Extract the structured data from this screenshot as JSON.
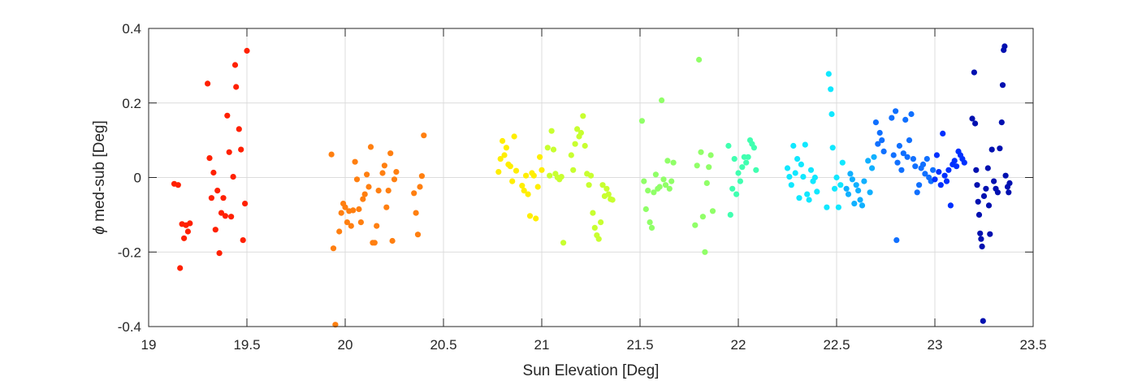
{
  "chart_data": {
    "type": "scatter",
    "title": "",
    "xlabel": "Sun Elevation [Deg]",
    "ylabel_symbol": "ϕ",
    "ylabel": " med-sub [Deg]",
    "xlim": [
      19,
      23.5
    ],
    "ylim": [
      -0.4,
      0.4
    ],
    "xticks": [
      19,
      19.5,
      20,
      20.5,
      21,
      21.5,
      22,
      22.5,
      23,
      23.5
    ],
    "xtick_labels": [
      "19",
      "19.5",
      "20",
      "20.5",
      "21",
      "21.5",
      "22",
      "22.5",
      "23",
      "23.5"
    ],
    "yticks": [
      0.4,
      0.2,
      0,
      -0.2,
      -0.4
    ],
    "ytick_labels": [
      "0.4",
      "0.2",
      "0",
      "-0.2",
      "-0.4"
    ],
    "grid": true,
    "series": [
      {
        "color": "#ff2000",
        "points": [
          [
            19.13,
            -0.017
          ],
          [
            19.15,
            -0.02
          ],
          [
            19.16,
            -0.243
          ],
          [
            19.17,
            -0.125
          ],
          [
            19.18,
            -0.163
          ],
          [
            19.19,
            -0.128
          ],
          [
            19.2,
            -0.145
          ],
          [
            19.21,
            -0.123
          ],
          [
            19.3,
            0.252
          ],
          [
            19.31,
            0.052
          ],
          [
            19.32,
            -0.055
          ],
          [
            19.33,
            0.013
          ],
          [
            19.34,
            -0.14
          ],
          [
            19.35,
            -0.035
          ],
          [
            19.36,
            -0.203
          ],
          [
            19.37,
            -0.095
          ],
          [
            19.38,
            -0.055
          ],
          [
            19.39,
            -0.103
          ],
          [
            19.4,
            0.166
          ],
          [
            19.41,
            0.068
          ],
          [
            19.42,
            -0.105
          ],
          [
            19.43,
            0.002
          ],
          [
            19.44,
            0.302
          ],
          [
            19.445,
            0.243
          ],
          [
            19.46,
            0.13
          ],
          [
            19.47,
            0.075
          ],
          [
            19.48,
            -0.168
          ],
          [
            19.49,
            -0.07
          ],
          [
            19.5,
            0.34
          ]
        ]
      },
      {
        "color": "#ff7f10",
        "points": [
          [
            19.93,
            0.062
          ],
          [
            19.94,
            -0.19
          ],
          [
            19.95,
            -0.395
          ],
          [
            19.97,
            -0.145
          ],
          [
            19.98,
            -0.095
          ],
          [
            19.99,
            -0.07
          ],
          [
            20.0,
            -0.08
          ],
          [
            20.01,
            -0.12
          ],
          [
            20.02,
            -0.09
          ],
          [
            20.03,
            -0.13
          ],
          [
            20.04,
            -0.088
          ],
          [
            20.05,
            0.042
          ],
          [
            20.06,
            -0.005
          ],
          [
            20.07,
            -0.085
          ],
          [
            20.08,
            -0.12
          ],
          [
            20.09,
            -0.058
          ],
          [
            20.1,
            -0.045
          ],
          [
            20.11,
            0.008
          ],
          [
            20.12,
            -0.025
          ],
          [
            20.13,
            0.082
          ],
          [
            20.14,
            -0.175
          ],
          [
            20.15,
            -0.175
          ],
          [
            20.16,
            -0.13
          ],
          [
            20.17,
            -0.035
          ],
          [
            20.19,
            0.012
          ],
          [
            20.2,
            0.032
          ],
          [
            20.21,
            -0.08
          ],
          [
            20.22,
            -0.035
          ],
          [
            20.23,
            0.065
          ],
          [
            20.24,
            -0.17
          ],
          [
            20.25,
            -0.005
          ],
          [
            20.26,
            0.015
          ],
          [
            20.35,
            -0.042
          ],
          [
            20.36,
            -0.095
          ],
          [
            20.37,
            -0.153
          ],
          [
            20.38,
            -0.025
          ],
          [
            20.39,
            0.004
          ],
          [
            20.4,
            0.113
          ]
        ]
      },
      {
        "color": "#ffee00",
        "points": [
          [
            20.78,
            0.015
          ],
          [
            20.79,
            0.05
          ],
          [
            20.8,
            0.098
          ],
          [
            20.81,
            0.06
          ],
          [
            20.82,
            0.08
          ],
          [
            20.83,
            0.035
          ],
          [
            20.84,
            0.03
          ],
          [
            20.85,
            -0.01
          ],
          [
            20.86,
            0.11
          ],
          [
            20.87,
            0.018
          ],
          [
            20.9,
            -0.022
          ],
          [
            20.91,
            -0.035
          ],
          [
            20.92,
            0.005
          ],
          [
            20.93,
            -0.045
          ],
          [
            20.94,
            -0.103
          ],
          [
            20.95,
            0.012
          ],
          [
            20.96,
            0.005
          ],
          [
            20.97,
            -0.11
          ],
          [
            20.98,
            -0.025
          ],
          [
            20.99,
            0.055
          ],
          [
            21.0,
            0.02
          ]
        ]
      },
      {
        "color": "#c8ff30",
        "points": [
          [
            21.03,
            0.08
          ],
          [
            21.04,
            0.005
          ],
          [
            21.05,
            0.125
          ],
          [
            21.06,
            0.075
          ],
          [
            21.07,
            0.01
          ],
          [
            21.08,
            0.0
          ],
          [
            21.09,
            -0.005
          ],
          [
            21.1,
            0.002
          ],
          [
            21.11,
            -0.175
          ],
          [
            21.15,
            0.06
          ],
          [
            21.16,
            0.02
          ],
          [
            21.17,
            0.09
          ],
          [
            21.18,
            0.13
          ],
          [
            21.19,
            0.11
          ],
          [
            21.2,
            0.12
          ],
          [
            21.21,
            0.165
          ],
          [
            21.22,
            0.085
          ],
          [
            21.23,
            0.01
          ],
          [
            21.24,
            -0.02
          ],
          [
            21.25,
            0.005
          ],
          [
            21.26,
            -0.095
          ],
          [
            21.27,
            -0.135
          ],
          [
            21.28,
            -0.155
          ],
          [
            21.29,
            -0.165
          ],
          [
            21.3,
            -0.12
          ],
          [
            21.31,
            -0.02
          ],
          [
            21.32,
            -0.05
          ],
          [
            21.33,
            -0.03
          ],
          [
            21.34,
            -0.045
          ],
          [
            21.35,
            -0.058
          ],
          [
            21.36,
            -0.06
          ]
        ]
      },
      {
        "color": "#90ff68",
        "points": [
          [
            21.51,
            0.152
          ],
          [
            21.52,
            -0.01
          ],
          [
            21.53,
            -0.085
          ],
          [
            21.54,
            -0.035
          ],
          [
            21.55,
            -0.12
          ],
          [
            21.56,
            -0.135
          ],
          [
            21.57,
            -0.04
          ],
          [
            21.58,
            0.008
          ],
          [
            21.59,
            -0.03
          ],
          [
            21.6,
            -0.025
          ],
          [
            21.61,
            0.207
          ],
          [
            21.62,
            -0.005
          ],
          [
            21.63,
            -0.02
          ],
          [
            21.64,
            0.045
          ],
          [
            21.65,
            -0.03
          ],
          [
            21.66,
            -0.01
          ],
          [
            21.67,
            0.04
          ],
          [
            21.78,
            -0.128
          ],
          [
            21.79,
            0.032
          ],
          [
            21.8,
            0.316
          ],
          [
            21.81,
            0.068
          ],
          [
            21.82,
            -0.105
          ],
          [
            21.83,
            -0.2
          ],
          [
            21.84,
            -0.015
          ],
          [
            21.85,
            0.028
          ],
          [
            21.86,
            0.06
          ],
          [
            21.87,
            -0.09
          ]
        ]
      },
      {
        "color": "#40ffb0",
        "points": [
          [
            21.95,
            0.085
          ],
          [
            21.96,
            -0.1
          ],
          [
            21.97,
            -0.03
          ],
          [
            21.98,
            0.05
          ],
          [
            21.99,
            -0.045
          ],
          [
            22.0,
            0.012
          ],
          [
            22.01,
            -0.01
          ],
          [
            22.02,
            0.028
          ],
          [
            22.03,
            0.055
          ],
          [
            22.04,
            0.04
          ],
          [
            22.05,
            0.055
          ],
          [
            22.06,
            0.1
          ],
          [
            22.07,
            0.09
          ],
          [
            22.08,
            0.08
          ],
          [
            22.09,
            0.02
          ]
        ]
      },
      {
        "color": "#10e8ff",
        "points": [
          [
            22.25,
            0.025
          ],
          [
            22.26,
            0.002
          ],
          [
            22.27,
            -0.02
          ],
          [
            22.28,
            0.085
          ],
          [
            22.29,
            0.012
          ],
          [
            22.3,
            0.05
          ],
          [
            22.31,
            -0.055
          ],
          [
            22.32,
            0.035
          ],
          [
            22.33,
            0.002
          ],
          [
            22.34,
            0.088
          ],
          [
            22.35,
            -0.045
          ],
          [
            22.36,
            -0.06
          ],
          [
            22.37,
            0.02
          ],
          [
            22.38,
            -0.01
          ],
          [
            22.39,
            0.0
          ],
          [
            22.4,
            -0.038
          ],
          [
            22.45,
            -0.08
          ],
          [
            22.46,
            0.278
          ],
          [
            22.47,
            0.237
          ],
          [
            22.475,
            0.17
          ],
          [
            22.48,
            0.08
          ],
          [
            22.49,
            -0.03
          ],
          [
            22.5,
            0.0
          ],
          [
            22.51,
            -0.08
          ],
          [
            22.52,
            -0.02
          ],
          [
            22.53,
            0.04
          ]
        ]
      },
      {
        "color": "#10b0ff",
        "points": [
          [
            22.55,
            -0.03
          ],
          [
            22.56,
            -0.045
          ],
          [
            22.57,
            0.01
          ],
          [
            22.58,
            -0.005
          ],
          [
            22.59,
            -0.07
          ],
          [
            22.6,
            -0.02
          ],
          [
            22.61,
            -0.035
          ],
          [
            22.62,
            -0.06
          ],
          [
            22.63,
            -0.075
          ],
          [
            22.64,
            -0.01
          ],
          [
            22.66,
            0.045
          ],
          [
            22.67,
            -0.04
          ],
          [
            22.68,
            0.025
          ],
          [
            22.69,
            0.055
          ]
        ]
      },
      {
        "color": "#1070ff",
        "points": [
          [
            22.7,
            0.148
          ],
          [
            22.71,
            0.09
          ],
          [
            22.72,
            0.12
          ],
          [
            22.73,
            0.1
          ],
          [
            22.74,
            0.07
          ],
          [
            22.78,
            0.16
          ],
          [
            22.79,
            0.06
          ],
          [
            22.8,
            0.178
          ],
          [
            22.805,
            -0.168
          ],
          [
            22.81,
            0.04
          ],
          [
            22.82,
            0.085
          ],
          [
            22.83,
            0.02
          ],
          [
            22.84,
            0.065
          ],
          [
            22.85,
            0.155
          ],
          [
            22.86,
            0.055
          ],
          [
            22.87,
            0.1
          ],
          [
            22.88,
            0.17
          ],
          [
            22.89,
            0.05
          ],
          [
            22.9,
            0.03
          ],
          [
            22.91,
            -0.04
          ],
          [
            22.92,
            -0.02
          ],
          [
            22.93,
            0.025
          ],
          [
            22.94,
            0.035
          ],
          [
            22.95,
            0.01
          ],
          [
            22.96,
            0.05
          ],
          [
            22.97,
            0.0
          ],
          [
            22.98,
            -0.01
          ],
          [
            22.99,
            0.02
          ]
        ]
      },
      {
        "color": "#0030ff",
        "points": [
          [
            23.0,
            -0.005
          ],
          [
            23.01,
            0.06
          ],
          [
            23.02,
            0.015
          ],
          [
            23.03,
            -0.02
          ],
          [
            23.04,
            0.118
          ],
          [
            23.05,
            0.005
          ],
          [
            23.06,
            -0.01
          ],
          [
            23.07,
            0.02
          ],
          [
            23.08,
            -0.075
          ],
          [
            23.09,
            0.035
          ],
          [
            23.1,
            0.045
          ],
          [
            23.11,
            0.03
          ],
          [
            23.12,
            0.07
          ],
          [
            23.13,
            0.06
          ],
          [
            23.14,
            0.05
          ],
          [
            23.15,
            0.04
          ]
        ]
      },
      {
        "color": "#0010b0",
        "points": [
          [
            23.19,
            0.158
          ],
          [
            23.2,
            0.282
          ],
          [
            23.205,
            0.145
          ],
          [
            23.21,
            0.02
          ],
          [
            23.215,
            -0.02
          ],
          [
            23.22,
            -0.065
          ],
          [
            23.225,
            -0.1
          ],
          [
            23.23,
            -0.15
          ],
          [
            23.235,
            -0.165
          ],
          [
            23.24,
            -0.185
          ],
          [
            23.245,
            -0.385
          ],
          [
            23.25,
            -0.05
          ],
          [
            23.26,
            -0.03
          ],
          [
            23.27,
            0.025
          ],
          [
            23.275,
            -0.075
          ],
          [
            23.28,
            -0.152
          ],
          [
            23.29,
            0.075
          ],
          [
            23.3,
            -0.01
          ],
          [
            23.31,
            -0.03
          ],
          [
            23.32,
            -0.04
          ],
          [
            23.33,
            0.078
          ],
          [
            23.34,
            0.148
          ],
          [
            23.345,
            0.248
          ],
          [
            23.35,
            0.342
          ],
          [
            23.355,
            0.352
          ],
          [
            23.36,
            0.005
          ],
          [
            23.37,
            -0.025
          ],
          [
            23.375,
            -0.04
          ],
          [
            23.38,
            -0.015
          ]
        ]
      }
    ]
  }
}
